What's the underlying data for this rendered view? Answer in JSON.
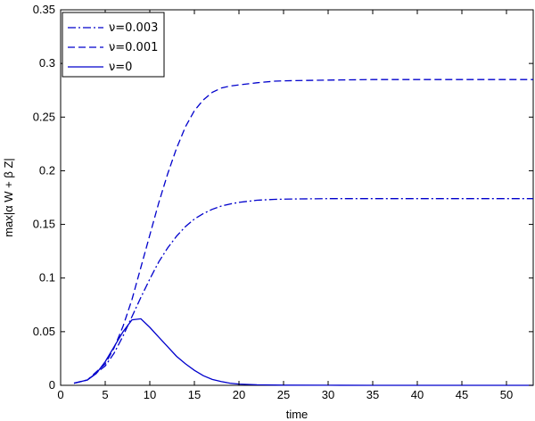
{
  "chart_data": {
    "type": "line",
    "title": "",
    "xlabel": "time",
    "ylabel": "max|α W + β Z|",
    "xlim": [
      0,
      53
    ],
    "ylim": [
      0,
      0.35
    ],
    "xticks": [
      0,
      5,
      10,
      15,
      20,
      25,
      30,
      35,
      40,
      45,
      50
    ],
    "yticks": [
      0,
      0.05,
      0.1,
      0.15,
      0.2,
      0.25,
      0.3,
      0.35
    ],
    "xtick_labels": [
      "0",
      "5",
      "10",
      "15",
      "20",
      "25",
      "30",
      "35",
      "40",
      "45",
      "50"
    ],
    "ytick_labels": [
      "0",
      "0.05",
      "0.1",
      "0.15",
      "0.2",
      "0.25",
      "0.3",
      "0.35"
    ],
    "grid": false,
    "legend_position": "top-left",
    "line_color": "#0000cc",
    "series": [
      {
        "name": "ν=0.003",
        "dash": "dashdot",
        "x": [
          1.5,
          3,
          5,
          6,
          7,
          8,
          9,
          10,
          11,
          12,
          13,
          14,
          15,
          16,
          17,
          18,
          19,
          20,
          22,
          24,
          26,
          30,
          35,
          40,
          45,
          50,
          53
        ],
        "y": [
          0.002,
          0.005,
          0.018,
          0.03,
          0.046,
          0.064,
          0.082,
          0.099,
          0.115,
          0.128,
          0.139,
          0.148,
          0.155,
          0.16,
          0.164,
          0.167,
          0.169,
          0.1705,
          0.1725,
          0.1733,
          0.1737,
          0.174,
          0.174,
          0.174,
          0.174,
          0.174,
          0.174
        ]
      },
      {
        "name": "ν=0.001",
        "dash": "dashed",
        "x": [
          1.5,
          3,
          5,
          6,
          7,
          8,
          9,
          10,
          11,
          12,
          13,
          14,
          15,
          16,
          17,
          18,
          19,
          20,
          21,
          22,
          24,
          26,
          30,
          35,
          40,
          45,
          50,
          53
        ],
        "y": [
          0.002,
          0.005,
          0.02,
          0.035,
          0.055,
          0.08,
          0.11,
          0.14,
          0.17,
          0.197,
          0.221,
          0.241,
          0.256,
          0.266,
          0.273,
          0.277,
          0.279,
          0.28,
          0.281,
          0.282,
          0.2835,
          0.284,
          0.2845,
          0.285,
          0.285,
          0.285,
          0.285,
          0.285
        ]
      },
      {
        "name": "ν=0",
        "dash": "solid",
        "x": [
          1.5,
          3,
          4,
          5,
          6,
          7,
          8,
          9,
          10,
          11,
          12,
          13,
          14,
          15,
          16,
          17,
          18,
          19,
          20,
          22,
          25,
          30,
          35,
          40,
          45,
          50,
          53
        ],
        "y": [
          0.002,
          0.005,
          0.011,
          0.022,
          0.036,
          0.05,
          0.061,
          0.062,
          0.054,
          0.045,
          0.036,
          0.027,
          0.02,
          0.014,
          0.009,
          0.0055,
          0.0035,
          0.002,
          0.0012,
          0.0005,
          0.0002,
          0.0001,
          0.0,
          0.0,
          0.0,
          0.0,
          0.0
        ]
      }
    ]
  }
}
